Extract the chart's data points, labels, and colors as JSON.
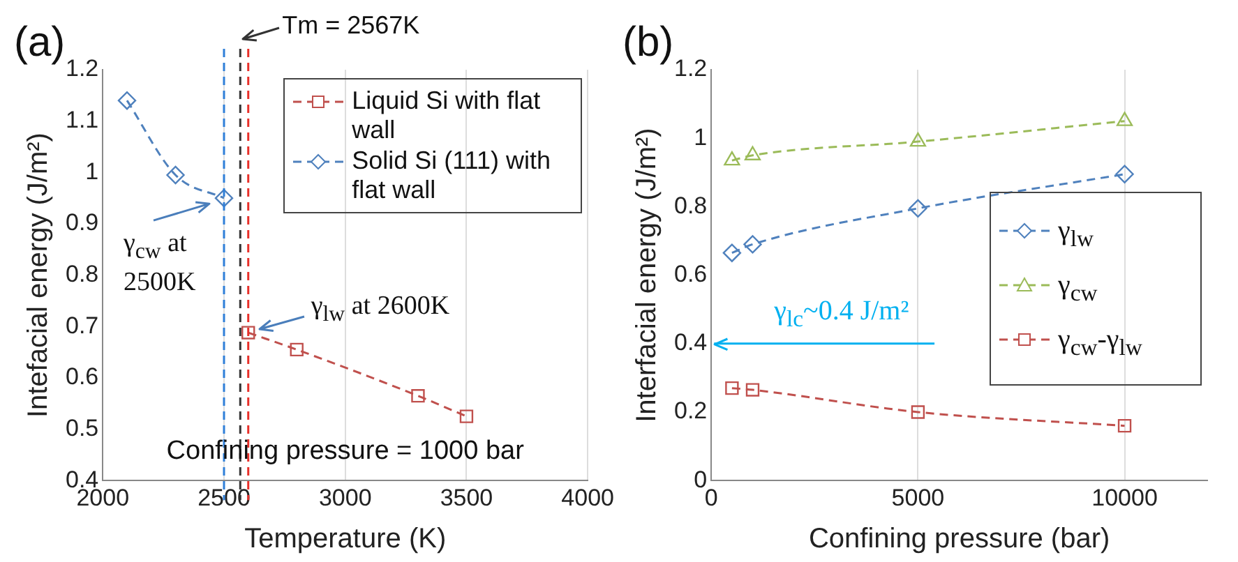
{
  "chart_data": [
    {
      "type": "line",
      "title": "(a)",
      "xlabel": "Temperature (K)",
      "ylabel": "Intefacial energy (J/m²)",
      "xlim": [
        2000,
        4000
      ],
      "xticks": [
        2000,
        2500,
        3000,
        3500,
        4000
      ],
      "ylim": [
        0.4,
        1.2
      ],
      "yticks": [
        0.4,
        0.5,
        0.6,
        0.7,
        0.8,
        0.9,
        1,
        1.1,
        1.2
      ],
      "grid": "x",
      "legend": "top right",
      "line_style": "dashed",
      "series": [
        {
          "name": "Liquid Si with flat wall",
          "color": "#c0504d",
          "marker": "square",
          "x": [
            2600,
            2800,
            3300,
            3500
          ],
          "values": [
            0.688,
            0.655,
            0.565,
            0.525
          ]
        },
        {
          "name": "Solid Si (111) with flat wall",
          "color": "#4f81bd",
          "marker": "diamond",
          "x": [
            2100,
            2300,
            2500
          ],
          "values": [
            1.14,
            0.995,
            0.95
          ]
        }
      ],
      "ref_lines": [
        {
          "axis": "x",
          "value": 2500,
          "color": "#2f7fd8",
          "line_style": "dashed"
        },
        {
          "axis": "x",
          "value": 2567,
          "label": "Tm = 2567K",
          "color": "#333333",
          "line_style": "dashed"
        },
        {
          "axis": "x",
          "value": 2600,
          "color": "#e8302a",
          "line_style": "dashed"
        }
      ],
      "annotations": [
        {
          "text": "γ$_{cw}$ at 2500K",
          "x": 2500,
          "y": 0.95
        },
        {
          "text": "γ$_{lw}$ at 2600K",
          "x": 2600,
          "y": 0.688
        },
        "Confining pressure = 1000 bar"
      ]
    },
    {
      "type": "line",
      "title": "(b)",
      "xlabel": "Confining pressure (bar)",
      "ylabel": "Interfacial energy (J/m²)",
      "xlim": [
        0,
        12000
      ],
      "xticks": [
        0,
        5000,
        10000
      ],
      "ylim": [
        0,
        1.2
      ],
      "yticks": [
        0,
        0.2,
        0.4,
        0.6,
        0.8,
        1,
        1.2
      ],
      "grid": "x",
      "legend": "right",
      "line_style": "dashed",
      "x": [
        500,
        1000,
        5000,
        10000
      ],
      "series": [
        {
          "name": "γ$_{lw}$",
          "color": "#4f81bd",
          "marker": "diamond",
          "values": [
            0.665,
            0.69,
            0.795,
            0.895
          ]
        },
        {
          "name": "γ$_{cw}$",
          "color": "#9bbb59",
          "marker": "triangle",
          "values": [
            0.935,
            0.95,
            0.99,
            1.05
          ]
        },
        {
          "name": "γ$_{cw}$-γ$_{lw}$",
          "color": "#c0504d",
          "marker": "square",
          "values": [
            0.27,
            0.265,
            0.2,
            0.16
          ]
        }
      ],
      "ref_lines": [
        {
          "axis": "y",
          "value": 0.4,
          "label": "γ$_{lc}$~0.4 J/m²",
          "color": "#00b0f0",
          "line_style": "solid"
        }
      ]
    }
  ]
}
